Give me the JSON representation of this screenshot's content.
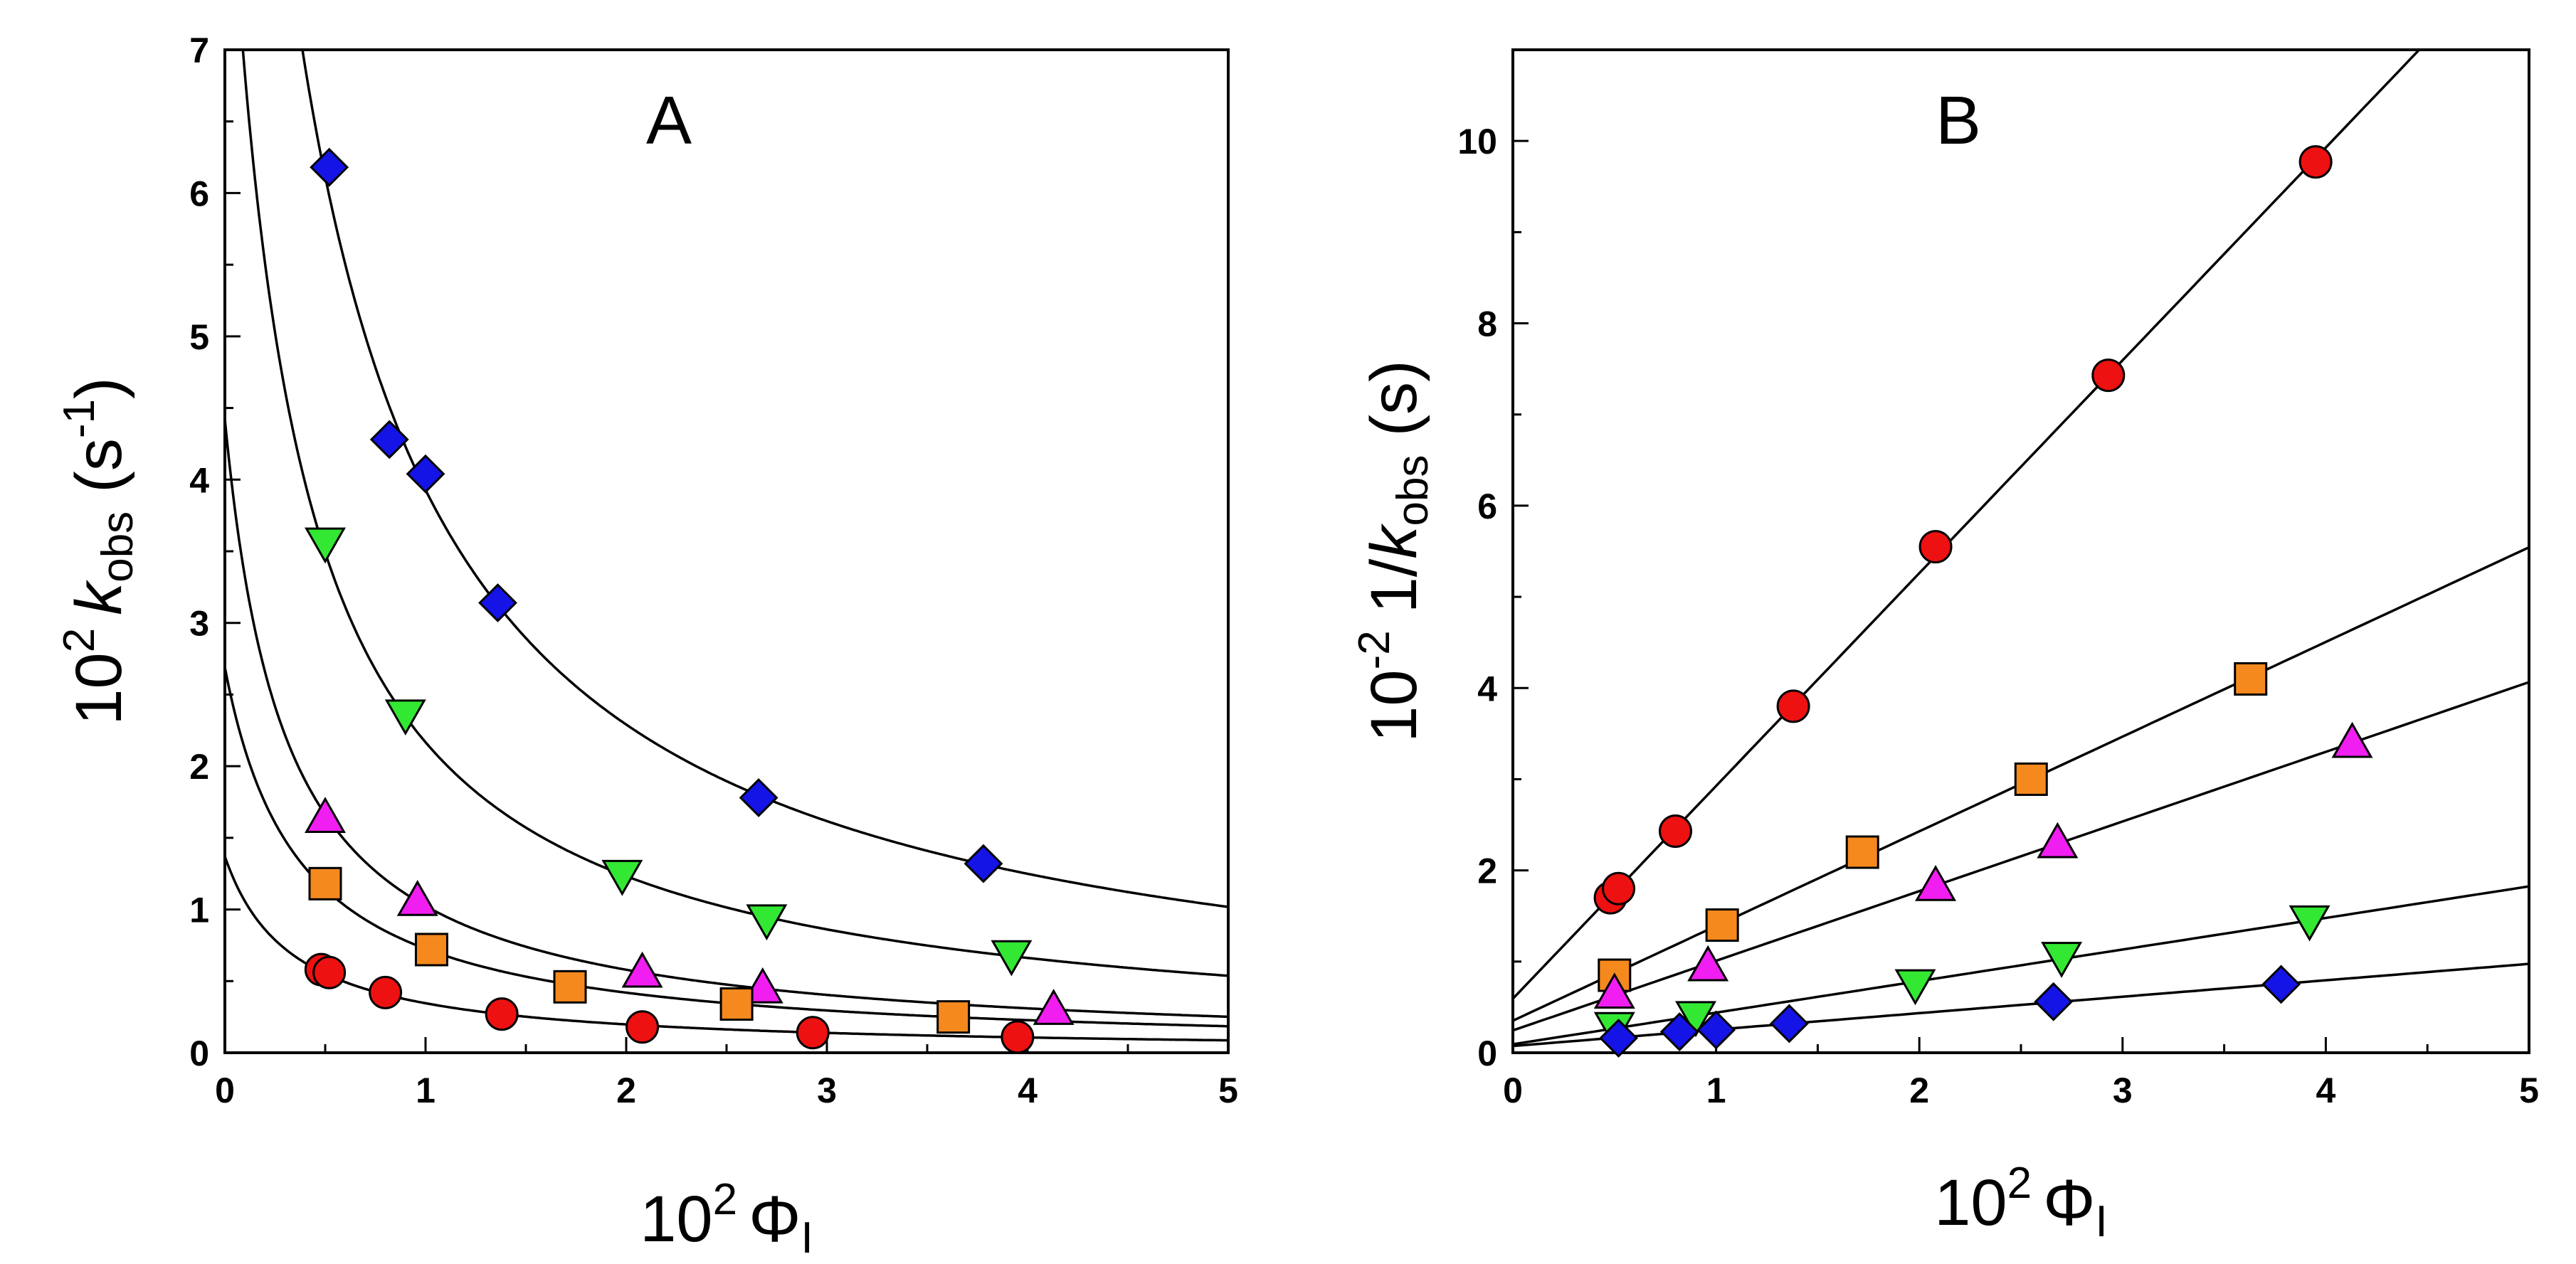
{
  "chart_data": [
    {
      "type": "scatter",
      "panel_label": "A",
      "xlabel": {
        "prefix": "10",
        "exp": "2",
        "symbol": "Φ",
        "sub": "I"
      },
      "ylabel": {
        "prefix": "10",
        "exp": "2",
        "symbol": "k",
        "sub": "obs",
        "unit_open": "(s",
        "unit_exp": "-1",
        "unit_close": ")"
      },
      "xlim": [
        0,
        5
      ],
      "ylim": [
        0,
        7
      ],
      "xticks": [
        0,
        1,
        2,
        3,
        4,
        5
      ],
      "yticks": [
        0,
        1,
        2,
        3,
        4,
        5,
        6,
        7
      ],
      "grid": false,
      "fit": "hyperbolic",
      "series": [
        {
          "marker": "diamond",
          "color": "#1414e6",
          "points": [
            [
              0.52,
              6.18
            ],
            [
              0.82,
              4.28
            ],
            [
              1.0,
              4.04
            ],
            [
              1.36,
              3.14
            ],
            [
              2.66,
              1.78
            ],
            [
              3.78,
              1.32
            ]
          ]
        },
        {
          "marker": "triangle-down",
          "color": "#33e833",
          "points": [
            [
              0.5,
              3.56
            ],
            [
              0.9,
              2.36
            ],
            [
              1.98,
              1.24
            ],
            [
              2.7,
              0.93
            ],
            [
              3.92,
              0.68
            ]
          ]
        },
        {
          "marker": "triangle-up",
          "color": "#f01ef0",
          "points": [
            [
              0.5,
              1.64
            ],
            [
              0.96,
              1.06
            ],
            [
              2.08,
              0.56
            ],
            [
              2.68,
              0.45
            ],
            [
              4.13,
              0.3
            ]
          ]
        },
        {
          "marker": "square",
          "color": "#f5891e",
          "points": [
            [
              0.5,
              1.18
            ],
            [
              1.03,
              0.72
            ],
            [
              1.72,
              0.46
            ],
            [
              2.55,
              0.34
            ],
            [
              3.63,
              0.25
            ]
          ]
        },
        {
          "marker": "circle",
          "color": "#ee1111",
          "points": [
            [
              0.48,
              0.58
            ],
            [
              0.52,
              0.56
            ],
            [
              0.8,
              0.42
            ],
            [
              1.38,
              0.27
            ],
            [
              2.08,
              0.18
            ],
            [
              2.93,
              0.14
            ],
            [
              3.95,
              0.11
            ]
          ]
        }
      ]
    },
    {
      "type": "scatter",
      "panel_label": "B",
      "xlabel": {
        "prefix": "10",
        "exp": "2",
        "symbol": "Φ",
        "sub": "I"
      },
      "ylabel": {
        "prefix": "10",
        "exp": "-2",
        "symbol": "1/k",
        "sub": "obs",
        "unit_open": "(s)",
        "unit_exp": "",
        "unit_close": ""
      },
      "xlim": [
        0,
        5
      ],
      "ylim": [
        0,
        11
      ],
      "xticks": [
        0,
        1,
        2,
        3,
        4,
        5
      ],
      "yticks": [
        0,
        2,
        4,
        6,
        8,
        10
      ],
      "grid": false,
      "fit": "linear",
      "series": [
        {
          "marker": "circle",
          "color": "#ee1111",
          "points": [
            [
              0.48,
              1.7
            ],
            [
              0.52,
              1.8
            ],
            [
              0.8,
              2.43
            ],
            [
              1.38,
              3.8
            ],
            [
              2.08,
              5.55
            ],
            [
              2.93,
              7.43
            ],
            [
              3.95,
              9.77
            ]
          ]
        },
        {
          "marker": "square",
          "color": "#f5891e",
          "points": [
            [
              0.5,
              0.85
            ],
            [
              1.03,
              1.4
            ],
            [
              1.72,
              2.2
            ],
            [
              2.55,
              3.0
            ],
            [
              3.63,
              4.1
            ]
          ]
        },
        {
          "marker": "triangle-up",
          "color": "#f01ef0",
          "points": [
            [
              0.5,
              0.65
            ],
            [
              0.96,
              0.95
            ],
            [
              2.08,
              1.83
            ],
            [
              2.68,
              2.3
            ],
            [
              4.13,
              3.4
            ]
          ]
        },
        {
          "marker": "triangle-down",
          "color": "#33e833",
          "points": [
            [
              0.5,
              0.28
            ],
            [
              0.9,
              0.4
            ],
            [
              1.98,
              0.75
            ],
            [
              2.7,
              1.05
            ],
            [
              3.92,
              1.45
            ]
          ]
        },
        {
          "marker": "diamond",
          "color": "#1414e6",
          "points": [
            [
              0.52,
              0.16
            ],
            [
              0.82,
              0.23
            ],
            [
              1.0,
              0.25
            ],
            [
              1.36,
              0.32
            ],
            [
              2.66,
              0.56
            ],
            [
              3.78,
              0.75
            ]
          ]
        }
      ]
    }
  ]
}
